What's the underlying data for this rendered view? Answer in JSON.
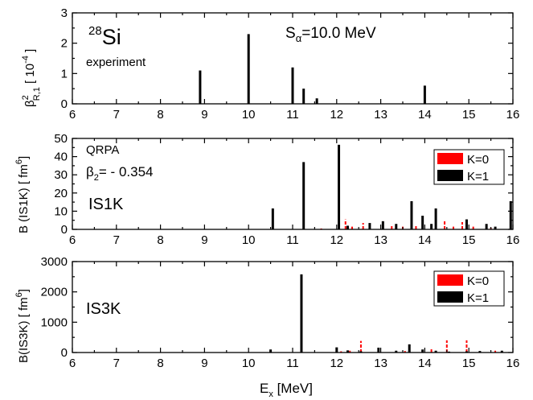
{
  "chart_data": [
    {
      "type": "bar",
      "panel": "experiment",
      "nucleus_mass": "28",
      "nucleus_symbol": "Si",
      "label": "experiment",
      "param_prefix": "S",
      "param_sub": "α",
      "param_value": "=10.0 MeV",
      "ylabel_main": "β",
      "ylabel_sup": "2",
      "ylabel_sub": "R,1",
      "ylabel_rest": " [ 10",
      "ylabel_exp": "-4",
      "ylabel_end": " ]",
      "xlim": [
        6,
        16
      ],
      "ylim": [
        0,
        3
      ],
      "yticks": [
        "0",
        "1",
        "2",
        "3"
      ],
      "xticks": [
        "6",
        "7",
        "8",
        "9",
        "10",
        "11",
        "12",
        "13",
        "14",
        "15",
        "16"
      ],
      "series": [
        {
          "color": "#000000",
          "points": [
            [
              8.9,
              1.1
            ],
            [
              10.0,
              2.3
            ],
            [
              11.0,
              1.2
            ],
            [
              11.25,
              0.5
            ],
            [
              11.55,
              0.18
            ],
            [
              14.0,
              0.6
            ]
          ]
        }
      ]
    },
    {
      "type": "bar",
      "panel": "IS1K",
      "model": "QRPA",
      "beta_label": "β",
      "beta_sub": "2",
      "beta_value": "= - 0.354",
      "label": "IS1K",
      "ylabel": "B (IS1K)  [ fm",
      "ylabel_exp": "6",
      "ylabel_end": "]",
      "xlim": [
        6,
        16
      ],
      "ylim": [
        0,
        50
      ],
      "yticks": [
        "0",
        "10",
        "20",
        "30",
        "40",
        "50"
      ],
      "xticks": [
        "6",
        "7",
        "8",
        "9",
        "10",
        "11",
        "12",
        "13",
        "14",
        "15",
        "16"
      ],
      "legend": [
        "K=0",
        "K=1"
      ],
      "series": [
        {
          "name": "K=0",
          "color": "#ff0000",
          "points": [
            [
              11.65,
              0.5
            ],
            [
              12.05,
              1.5
            ],
            [
              12.2,
              5.5
            ],
            [
              12.35,
              1.5
            ],
            [
              12.6,
              3.5
            ],
            [
              13.25,
              2.5
            ],
            [
              13.5,
              1.5
            ],
            [
              13.8,
              2.5
            ],
            [
              14.15,
              2.5
            ],
            [
              14.45,
              4.5
            ],
            [
              14.65,
              1.5
            ],
            [
              14.85,
              4.0
            ],
            [
              15.1,
              1.5
            ],
            [
              15.5,
              0.8
            ]
          ]
        },
        {
          "name": "K=1",
          "color": "#000000",
          "points": [
            [
              10.55,
              11.5
            ],
            [
              11.25,
              37.0
            ],
            [
              12.05,
              46.5
            ],
            [
              12.25,
              2.0
            ],
            [
              12.75,
              3.5
            ],
            [
              13.05,
              4.5
            ],
            [
              13.35,
              3.0
            ],
            [
              13.7,
              15.5
            ],
            [
              13.95,
              7.5
            ],
            [
              14.15,
              3.0
            ],
            [
              14.25,
              11.5
            ],
            [
              14.95,
              5.5
            ],
            [
              15.4,
              3.0
            ],
            [
              15.6,
              1.5
            ],
            [
              15.95,
              15.5
            ]
          ]
        }
      ]
    },
    {
      "type": "bar",
      "panel": "IS3K",
      "label": "IS3K",
      "ylabel": "B(IS3K) [ fm",
      "ylabel_exp": "6",
      "ylabel_end": "]",
      "xlabel": "E",
      "xlabel_sub": "x",
      "xlabel_rest": " [MeV]",
      "xlim": [
        6,
        16
      ],
      "ylim": [
        0,
        3000
      ],
      "yticks": [
        "0",
        "1000",
        "2000",
        "3000"
      ],
      "xticks": [
        "6",
        "7",
        "8",
        "9",
        "10",
        "11",
        "12",
        "13",
        "14",
        "15",
        "16"
      ],
      "legend": [
        "K=0",
        "K=1"
      ],
      "series": [
        {
          "name": "K=0",
          "color": "#ff0000",
          "points": [
            [
              12.1,
              40
            ],
            [
              12.3,
              60
            ],
            [
              12.55,
              380
            ],
            [
              13.55,
              50
            ],
            [
              14.15,
              130
            ],
            [
              14.5,
              400
            ],
            [
              14.95,
              400
            ],
            [
              15.6,
              60
            ]
          ]
        },
        {
          "name": "K=1",
          "color": "#000000",
          "points": [
            [
              10.5,
              100
            ],
            [
              11.2,
              2580
            ],
            [
              12.0,
              170
            ],
            [
              12.25,
              70
            ],
            [
              12.55,
              40
            ],
            [
              12.95,
              160
            ],
            [
              13.35,
              60
            ],
            [
              13.65,
              270
            ],
            [
              13.95,
              100
            ],
            [
              14.25,
              60
            ],
            [
              14.55,
              30
            ],
            [
              14.95,
              40
            ],
            [
              15.25,
              50
            ],
            [
              15.75,
              60
            ]
          ]
        }
      ]
    }
  ]
}
